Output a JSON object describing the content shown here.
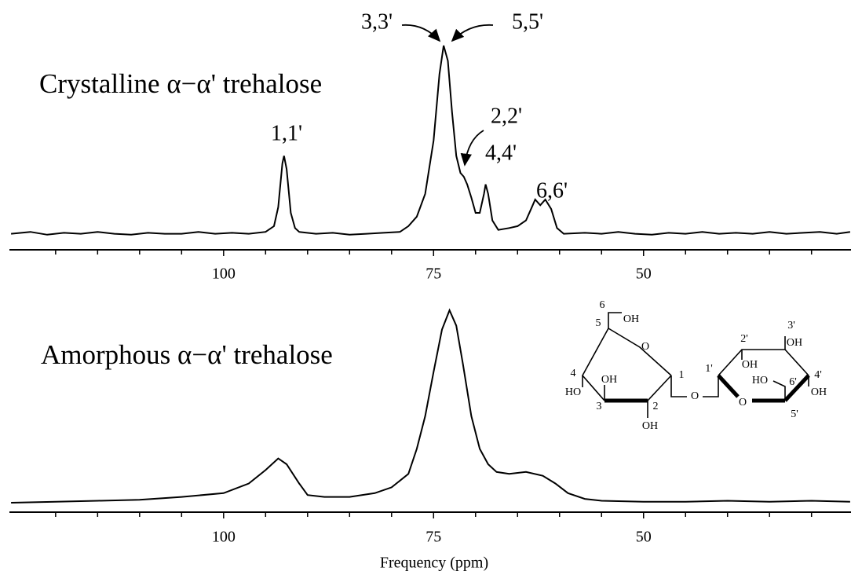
{
  "chart_data": [
    {
      "type": "line",
      "title": "Crystalline α−α' trehalose",
      "color": "#000000",
      "xlim": [
        125.5,
        25.3
      ],
      "xticks": [
        100,
        75,
        50
      ],
      "x_minor_ticks": [
        120,
        115,
        110,
        105,
        95,
        90,
        85,
        80,
        70,
        65,
        60,
        55,
        45,
        40,
        35,
        30
      ],
      "ylim": [
        0,
        100
      ],
      "annotations": [
        "1,1'",
        "3,3'",
        "5,5'",
        "2,2'",
        "4,4'",
        "6,6'"
      ],
      "x": [
        125.3,
        123,
        121,
        119,
        117,
        115,
        113,
        111,
        109,
        107,
        105,
        103,
        101,
        99,
        97,
        95,
        94,
        93.5,
        93,
        92.8,
        92.5,
        92,
        91.5,
        91,
        89,
        87,
        85,
        83,
        81,
        79,
        78,
        77,
        76,
        75,
        74.3,
        73.8,
        73.3,
        72.8,
        72.3,
        71.8,
        71.4,
        71,
        70.5,
        70,
        69.5,
        69,
        68.8,
        68.5,
        68,
        67.3,
        66,
        65,
        64,
        63.3,
        62.9,
        62.3,
        61.7,
        61,
        60.3,
        59.5,
        57,
        55,
        53,
        51,
        49,
        47,
        45,
        43,
        41,
        39,
        37,
        35,
        33,
        31,
        29,
        27,
        25.4
      ],
      "values": [
        1,
        2,
        0.5,
        1.5,
        1,
        2,
        1,
        0.5,
        1.5,
        1,
        1,
        2,
        1,
        1.5,
        1,
        2,
        5,
        15,
        38,
        42,
        35,
        12,
        4,
        2,
        1,
        1.5,
        0.5,
        1,
        1.5,
        2,
        5,
        10,
        22,
        50,
        85,
        100,
        92,
        65,
        42,
        33,
        31,
        27,
        20,
        12,
        12,
        22,
        27,
        22,
        8,
        3,
        4,
        5,
        8,
        15,
        19,
        16,
        19,
        14,
        4,
        1,
        1.5,
        1,
        2,
        1,
        0.5,
        1.5,
        1,
        2,
        1,
        1.5,
        1,
        2,
        1,
        1.5,
        2,
        1,
        2
      ]
    },
    {
      "type": "line",
      "title": "Amorphous α−α' trehalose",
      "color": "#000000",
      "x_label": "Frequency (ppm)",
      "xlim": [
        125.5,
        25.3
      ],
      "xticks": [
        100,
        75,
        50
      ],
      "x_minor_ticks": [
        120,
        115,
        110,
        105,
        95,
        90,
        85,
        80,
        70,
        65,
        60,
        55,
        45,
        40,
        35,
        30
      ],
      "ylim": [
        0,
        100
      ],
      "x": [
        125.3,
        120,
        115,
        110,
        105,
        100,
        97,
        95,
        93.5,
        92.5,
        91,
        90,
        88,
        85,
        82,
        80,
        78,
        77,
        76,
        75,
        74,
        73.1,
        72.3,
        71.5,
        70.5,
        69.5,
        68.5,
        67.5,
        66,
        64,
        62,
        60.5,
        59,
        57,
        55,
        50,
        45,
        40,
        35,
        30,
        25.4
      ],
      "values": [
        0,
        0.5,
        1,
        1.5,
        3,
        5,
        10,
        17,
        23,
        20,
        10,
        4,
        3,
        3,
        5,
        8,
        15,
        28,
        45,
        68,
        90,
        100,
        92,
        72,
        45,
        28,
        20,
        16,
        15,
        16,
        14,
        10,
        5,
        2,
        1,
        0.5,
        0.5,
        1,
        0.5,
        1,
        0.5
      ]
    }
  ],
  "structure": {
    "labels": [
      "6",
      "OH",
      "5",
      "O",
      "1",
      "4",
      "OH",
      "HO",
      "3",
      "2",
      "OH",
      "O",
      "1'",
      "2'",
      "OH",
      "3'",
      "OH",
      "HO",
      "6'",
      "4'",
      "OH",
      "O",
      "5'"
    ]
  }
}
